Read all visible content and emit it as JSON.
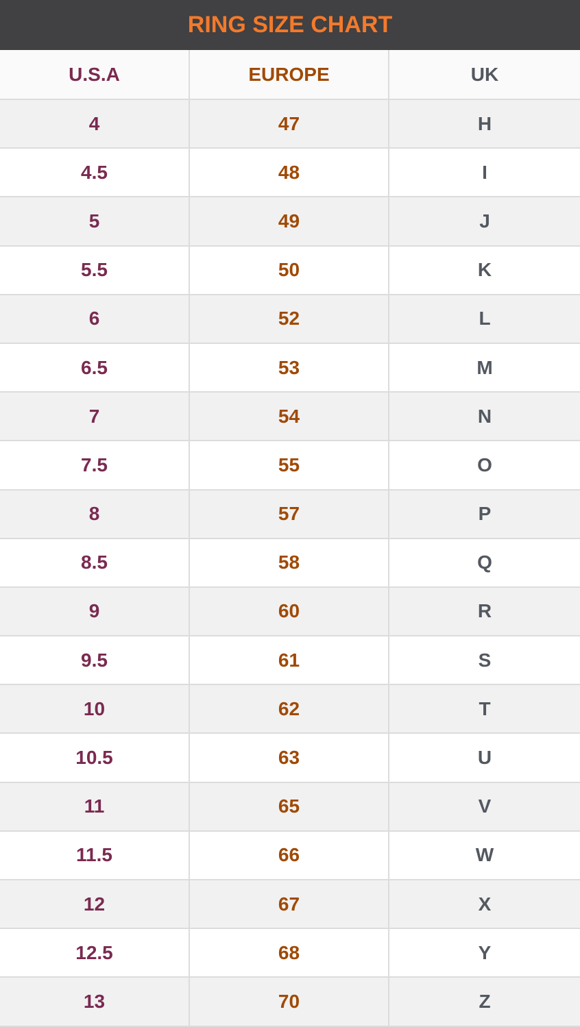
{
  "title": "RING SIZE CHART",
  "colors": {
    "header_bg": "#414042",
    "title": "#f47a2a",
    "usa": "#7a2a50",
    "europe": "#a04a05",
    "uk": "#535860"
  },
  "columns": [
    "U.S.A",
    "EUROPE",
    "UK"
  ],
  "rows": [
    [
      "4",
      "47",
      "H"
    ],
    [
      "4.5",
      "48",
      "I"
    ],
    [
      "5",
      "49",
      "J"
    ],
    [
      "5.5",
      "50",
      "K"
    ],
    [
      "6",
      "52",
      "L"
    ],
    [
      "6.5",
      "53",
      "M"
    ],
    [
      "7",
      "54",
      "N"
    ],
    [
      "7.5",
      "55",
      "O"
    ],
    [
      "8",
      "57",
      "P"
    ],
    [
      "8.5",
      "58",
      "Q"
    ],
    [
      "9",
      "60",
      "R"
    ],
    [
      "9.5",
      "61",
      "S"
    ],
    [
      "10",
      "62",
      "T"
    ],
    [
      "10.5",
      "63",
      "U"
    ],
    [
      "11",
      "65",
      "V"
    ],
    [
      "11.5",
      "66",
      "W"
    ],
    [
      "12",
      "67",
      "X"
    ],
    [
      "12.5",
      "68",
      "Y"
    ],
    [
      "13",
      "70",
      "Z"
    ]
  ]
}
